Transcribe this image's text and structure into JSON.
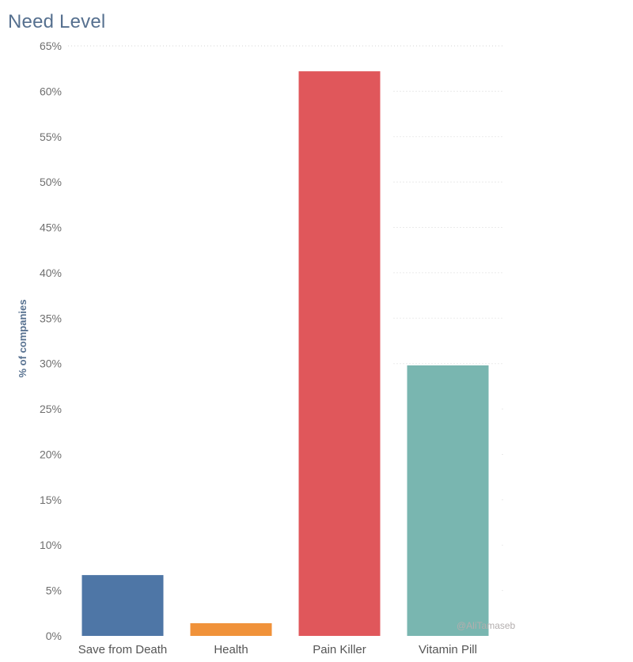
{
  "chart_data": {
    "type": "bar",
    "title": "Need Level",
    "ylabel": "% of companies",
    "xlabel": "",
    "categories": [
      "Save from Death",
      "Health",
      "Pain Killer",
      "Vitamin Pill"
    ],
    "values": [
      6.7,
      1.4,
      62.2,
      29.8
    ],
    "colors": [
      "#4e76a6",
      "#f0923a",
      "#e0575b",
      "#79b6b0"
    ],
    "ylim": [
      0,
      65
    ],
    "yticks": [
      0,
      5,
      10,
      15,
      20,
      25,
      30,
      35,
      40,
      45,
      50,
      55,
      60,
      65
    ],
    "ytick_format": "%",
    "grid": true,
    "watermark": "@AliTamaseb"
  }
}
